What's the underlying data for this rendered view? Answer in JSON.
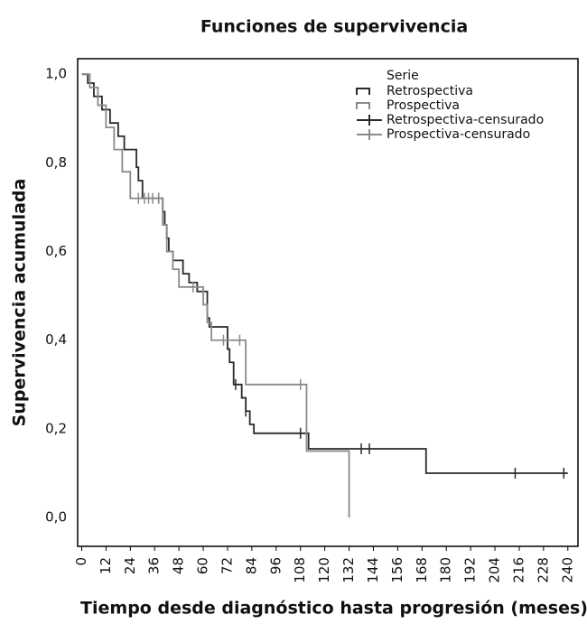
{
  "chart_data": {
    "type": "step",
    "title": "Funciones de supervivencia",
    "x_label": "Tiempo desde diagnóstico hasta progresión (meses)",
    "y_label": "Supervivencia acumulada",
    "legend_title": "Serie",
    "xlim": [
      -2,
      245
    ],
    "ylim": [
      -0.065,
      1.035
    ],
    "xticks": [
      0,
      12,
      24,
      36,
      48,
      60,
      72,
      84,
      96,
      108,
      120,
      132,
      144,
      156,
      168,
      180,
      192,
      204,
      216,
      228,
      240
    ],
    "yticks": [
      {
        "value": 0,
        "label": "0,0"
      },
      {
        "value": 0.2,
        "label": "0,2"
      },
      {
        "value": 0.4,
        "label": "0,4"
      },
      {
        "value": 0.6,
        "label": "0,6"
      },
      {
        "value": 0.8,
        "label": "0,8"
      },
      {
        "value": 1.0,
        "label": "1,0"
      }
    ],
    "series": [
      {
        "name": "Retrospectiva",
        "color": "#2a2a2a",
        "mark": "step",
        "x": [
          0,
          3,
          6,
          10,
          14,
          18,
          21,
          27,
          28,
          30,
          40,
          41,
          42,
          43,
          45,
          50,
          53,
          57,
          62,
          63,
          72,
          73,
          75,
          79,
          81,
          83,
          85,
          112,
          170,
          240
        ],
        "values": [
          1.0,
          0.98,
          0.95,
          0.92,
          0.89,
          0.86,
          0.83,
          0.79,
          0.76,
          0.72,
          0.69,
          0.66,
          0.63,
          0.6,
          0.58,
          0.55,
          0.53,
          0.51,
          0.45,
          0.43,
          0.38,
          0.35,
          0.3,
          0.27,
          0.24,
          0.21,
          0.19,
          0.155,
          0.1,
          0.1
        ]
      },
      {
        "name": "Prospectiva",
        "color": "#8a8a8a",
        "mark": "step",
        "x": [
          0,
          4,
          8,
          12,
          16,
          20,
          24,
          40,
          42,
          45,
          48,
          60,
          62,
          64,
          81,
          111,
          132
        ],
        "values": [
          1.0,
          0.97,
          0.93,
          0.88,
          0.83,
          0.78,
          0.72,
          0.66,
          0.6,
          0.56,
          0.52,
          0.48,
          0.44,
          0.4,
          0.3,
          0.15,
          0.0
        ]
      },
      {
        "name": "Retrospectiva-censurado",
        "color": "#2a2a2a",
        "mark": "censor",
        "x": [
          38,
          76,
          81,
          108,
          138,
          142,
          214,
          238
        ],
        "values": [
          0.72,
          0.3,
          0.24,
          0.19,
          0.155,
          0.155,
          0.1,
          0.1
        ]
      },
      {
        "name": "Prospectiva-censurado",
        "color": "#8a8a8a",
        "mark": "censor",
        "x": [
          28,
          31,
          33,
          35,
          38,
          55,
          70,
          78,
          108
        ],
        "values": [
          0.72,
          0.72,
          0.72,
          0.72,
          0.72,
          0.52,
          0.4,
          0.4,
          0.3
        ]
      }
    ]
  }
}
